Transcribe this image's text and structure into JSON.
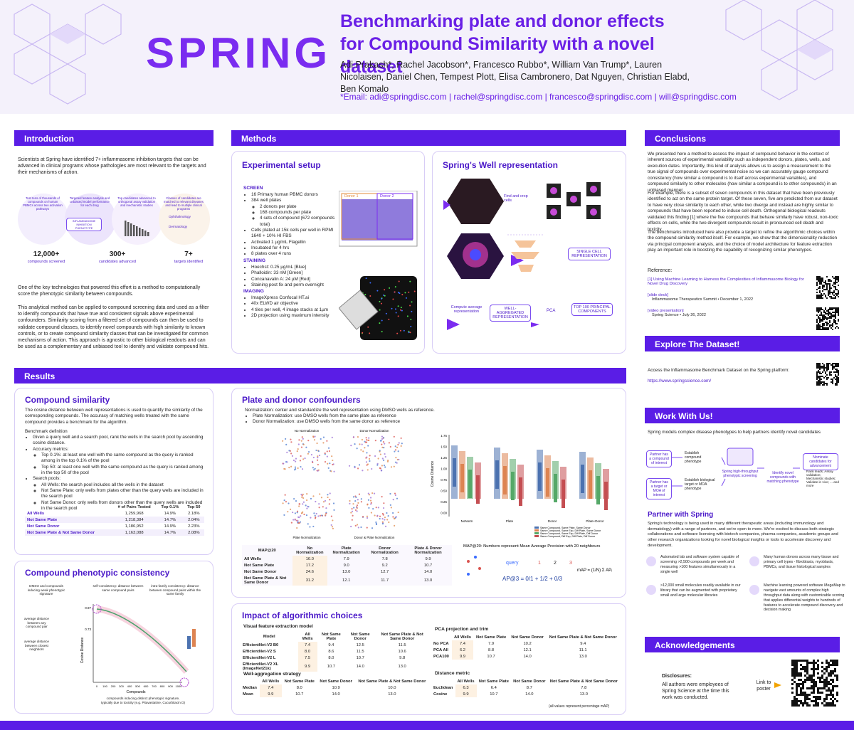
{
  "header": {
    "logo": "SPRING",
    "title": "Benchmarking plate and donor effects for Compound Similarity with a novel dataset",
    "authors": "Adi Prakash*, Rachel Jacobson*, Francesco Rubbo*, William Van Trump*, Lauren Nicolaisen, Daniel Chen, Tempest Plott, Elisa Cambronero, Dat Nguyen, Christian Elabd, Ben Komalo",
    "email": "*Email: adi@springdisc.com | rachel@springdisc.com | francesco@springdisc.com | will@springdisc.com"
  },
  "introduction": {
    "heading": "Introduction",
    "p1": "Scientists at Spring have identified 7+ inflammasome inhibition targets that can be advanced in clinical programs whose pathologies are most relevant to the targets and their mechanisms of action.",
    "steps": [
      "Test tens of thousands of compounds on human PBMCs across two activation pathways",
      "Targeted feature analysis and unbiased model performance for each drug",
      "Top candidates advanced to orthogonal assay validation and mechanistic studies",
      "Classes of candidates are matched to relevant diseases and lead to multiple clinical programs"
    ],
    "phenotype": "INFLAMMASOME INHIBITION PHENOTYPE",
    "diseases": [
      "Ophthalmology",
      "Dermatology"
    ],
    "stats": [
      {
        "value": "12,000+",
        "label": "compounds screened"
      },
      {
        "value": "300+",
        "label": "candidates advanced"
      },
      {
        "value": "7+",
        "label": "targets identified"
      }
    ],
    "p2": "One of the key technologies that powered this effort is a method to computationally score the phenotypic similarity between compounds.",
    "p3": "This analytical method can be applied to compound screening data and used as a filter to identify compounds that have true and consistent signals above experimental confounders. Similarity scoring from a filtered set of compounds can then be used to validate compound classes, to identify novel compounds with high similarity to known controls, or to create compound similarity classes that can be investigated for common mechanisms of action. This approach is agnostic to other biological readouts and can be used as a complementary and unbiased tool to identify and validate compound hits."
  },
  "methods": {
    "heading": "Methods",
    "setup": {
      "title": "Experimental setup",
      "screen_heading": "SCREEN",
      "screen": [
        "16 Primary human PBMC donors",
        {
          "text": "384 well plates",
          "items": [
            "2 donors per plate",
            "168 compounds per plate",
            "4 sets of compound (672 compounds total)"
          ]
        },
        "Cells plated at 15k cells per well in RPMI 1640 + 10% HI FBS",
        "Activated 1 µg/mL Flagellin",
        "Incubated for 4 hrs",
        "8 plates over 4 runs"
      ],
      "staining_heading": "STAINING",
      "staining": [
        "Hoechst: 0.25 µg/mL [Blue]",
        "Phalloidin: 33 nM [Green]",
        "Concanavalin A: 24 µM [Red]",
        "Staining post fix and perm overnight"
      ],
      "imaging_heading": "IMAGING",
      "imaging": [
        "ImageXpress Confocal HT.ai",
        "40x ELWD air objective",
        "4 tiles per well, 4 image stacks at 1µm",
        "2D projection using maximum intensity"
      ],
      "donors": [
        "Donor 1",
        "Donor 2"
      ]
    },
    "well": {
      "title": "Spring's Well representation",
      "crop": "Find and crop cells",
      "single": "SINGLE CELL REPRESENTATION",
      "average": "Compute average representation",
      "aggregated": "WELL-AGGREGATED REPRESENTATION",
      "pca": "PCA",
      "top": "TOP 100 PRINCIPAL COMPONENTS"
    }
  },
  "results": {
    "heading": "Results",
    "similarity": {
      "title": "Compound similarity",
      "intro": "The cosine distance between well representations is used to quantify the similarity of the corresponding compounds. The accuracy of matching wells treated with the same compound provides a benchmark for the algorithm.",
      "benchmark_title": "Benchmark definition",
      "benchmark": [
        "Given a query well and a search pool, rank the wells in the search pool by ascending cosine distance.",
        {
          "text": "Accuracy metrics:",
          "items": [
            "Top 0.1%: at least one well with the same compound as the query is ranked among in the top 0.1% of the pool",
            "Top 50: at least one well with the same compound as the query is ranked among in the top 50 of the pool"
          ]
        },
        {
          "text": "Search pools:",
          "items": [
            "All Wells: the search pool includes all the wells in the dataset",
            "Not Same Plate: only wells from plates other than the query wells are included in the search pool",
            "Not Same Donor: only wells from donors other than the query wells are included in the search pool"
          ]
        }
      ],
      "table": {
        "header": [
          "# of Pairs Tested",
          "Top 0.1%",
          "Top 50"
        ],
        "rows": [
          [
            "All Wells",
            "1,259,968",
            "14.9%",
            "2.18%"
          ],
          [
            "Not Same Plate",
            "1,218,384",
            "14.7%",
            "2.04%"
          ],
          [
            "Not Same Donor",
            "1,186,952",
            "14.9%",
            "2.23%"
          ],
          [
            "Not Same Plate & Not Same Donor",
            "1,163,088",
            "14.7%",
            "2.08%"
          ]
        ]
      }
    },
    "consistency": {
      "title": "Compound phenotypic consistency",
      "notes": [
        "DMSO and compounds inducing weak phenotypic signature",
        "self-consistency: distance between same compound pairs",
        "intra-family consistency: distance between compound pairs within the same family",
        "average distance between any compound pair",
        "average distance between closest neighbors",
        "compounds inducing distinct phenotypic signature, typically due to toxicity (e.g. Pitavastatine, Cucurbitacin D)"
      ],
      "ylabel": "Cosine Distance",
      "xlabel": "Compounds",
      "yticks": [
        "0.97",
        "0.73"
      ],
      "xticks": [
        "0",
        "100",
        "200",
        "300",
        "400",
        "500",
        "600",
        "700",
        "800",
        "900",
        "1000"
      ]
    },
    "plate": {
      "title": "Plate and donor confounders",
      "norm": "Normalization: center and standardize the well representation using DMSO wells as reference.",
      "bullets": [
        "Plate Normalization: use DMSO wells from the same plate as reference",
        "Donor Normalization: use DMSO wells from the same donor as reference"
      ],
      "panels": [
        "No Normalization",
        "Donor Normalization",
        "Plate Normalization",
        "Donor & Plate Normalization"
      ],
      "violin": {
        "ylabel": "Cosine Distance",
        "yticks": [
          "1.75",
          "1.50",
          "1.25",
          "1.00",
          "0.75",
          "0.50",
          "0.25",
          "0.00"
        ],
        "categories": [
          "NoNorm",
          "Plate",
          "Donor",
          "Plate+Donor"
        ],
        "legend": [
          "Same Compound, Same Plate, Same Donor",
          "Same Compound, Same Exp, Diff Plate, Same Donor",
          "Same Compound, Same Exp, Diff Plate, Diff Donor",
          "Same Compound, Diff Exp, Diff Plate, Diff Donor"
        ]
      },
      "map_table": {
        "header": [
          "MAP@20",
          "No Normalization",
          "Plate Normalization",
          "Donor Normalization",
          "Plate & Donor Normalization"
        ],
        "rows": [
          [
            "All Wells",
            "16.0",
            "7.9",
            "7.8",
            "9.9"
          ],
          [
            "Not Same Plate",
            "17.2",
            "9.0",
            "9.2",
            "10.7"
          ],
          [
            "Not Same Donor",
            "24.6",
            "13.0",
            "12.7",
            "14.0"
          ],
          [
            "Not Same Plate & Not Same Donor",
            "31.2",
            "12.1",
            "11.7",
            "13.0"
          ]
        ]
      },
      "map_note": "MAP@20: Numbers represent Mean Average Precision with 20 neighbours",
      "query": "query",
      "ranks": [
        "1",
        "2",
        "3"
      ],
      "ap": "AP@3 = 0/1 + 1/2 + 0/3",
      "map": "mAP = (1/N) Σ APᵢ"
    },
    "impact": {
      "title": "Impact of algorithmic choices",
      "model_title": "Visual feature extraction model",
      "model": {
        "header": [
          "Model",
          "All Wells",
          "Not Same Plate",
          "Not Same Donor",
          "Not Same Plate & Not Same Donor"
        ],
        "rows": [
          [
            "EfficientNet-V2 B0",
            "7.4",
            "9.4",
            "12.5",
            "11.5"
          ],
          [
            "EfficientNet-V2 S",
            "8.0",
            "8.6",
            "11.5",
            "10.6"
          ],
          [
            "EfficientNet-V2 L",
            "7.5",
            "8.0",
            "10.7",
            "9.8"
          ],
          [
            "EfficientNet-V2 XL (ImageNet21k)",
            "9.9",
            "10.7",
            "14.0",
            "13.0"
          ]
        ]
      },
      "agg_title": "Well-aggregation strategy",
      "agg": {
        "header": [
          "All Wells",
          "Not Same Plate",
          "Not Same Donor",
          "Not Same Plate & Not Same Donor"
        ],
        "rows": [
          [
            "Median",
            "7.4",
            "8.0",
            "10.9",
            "10.0"
          ],
          [
            "Mean",
            "9.9",
            "10.7",
            "14.0",
            "13.0"
          ]
        ]
      },
      "pca_title": "PCA projection and trim",
      "pca": {
        "header": [
          "All Wells",
          "Not Same Plate",
          "Not Same Donor",
          "Not Same Plate & Not Same Donor"
        ],
        "rows": [
          [
            "No PCA",
            "7.4",
            "7.9",
            "10.2",
            "9.4"
          ],
          [
            "PCA All",
            "6.2",
            "8.8",
            "12.1",
            "11.1"
          ],
          [
            "PCA100",
            "9.9",
            "10.7",
            "14.0",
            "13.0"
          ]
        ]
      },
      "dist_title": "Distance metric",
      "dist": {
        "header": [
          "All Wells",
          "Not Same Plate",
          "Not Same Donor",
          "Not Same Plate & Not Same Donor"
        ],
        "rows": [
          [
            "Euclidean",
            "6.3",
            "6.4",
            "8.7",
            "7.8"
          ],
          [
            "Cosine",
            "9.9",
            "10.7",
            "14.0",
            "13.0"
          ]
        ]
      },
      "footnote": "(all values represent percentage mAP)"
    }
  },
  "conclusions": {
    "heading": "Conclusions",
    "p1": "We presented here a method to assess the impact of compound behavior in the context of inherent sources of experimental variability such as independent donors, plates, wells, and execution dates. Importantly, this kind of analysis allows us to assign a measurement to the true signal of compounds over experimental noise so we can accurately gauge compound consistency (how similar a compound is to itself across experimental variables), and compound similarity to other molecules (how similar a compound is to other compounds) in an unbiased manner.",
    "p2": "For example, there is a subset of seven compounds in this dataset that have been previously identified to act on the same protein target. Of these seven, five are predicted from our dataset to have very close similarity to each other, while two diverge and instead are highly similar to compounds that have been reported to induce cell death. Orthogonal biological readouts validated this finding [1] where the five compounds that behave similarly have robust, non-toxic effects on cells, while the two divergent compounds result in pronounced cell death and toxicity.",
    "p3": "The benchmarks introduced here also provide a target to refine the algorithmic choices within the compound similarity method itself. For example, we show that the dimensionality reduction via principal component analysis, and the choice of model architecture for feature extraction play an important role in boosting the capability of recognizing similar phenotypes.",
    "reference": "Reference:",
    "refs": [
      {
        "title": "[1] Using Machine Learning to Harness the Complexities of Inflammasome Biology for Novel Drug Discovery"
      },
      {
        "title": "[slide deck]",
        "detail": "Inflammasome Therapeutics Summit • December 1, 2022"
      },
      {
        "title": "[video presentation]",
        "detail": "Spring Science • July 26, 2022"
      }
    ]
  },
  "explore": {
    "heading": "Explore The Dataset!",
    "text": "Access the Inflammasome Benchmark Dataset on the Spring platform:",
    "link": "https://www.springscience.com/"
  },
  "work": {
    "heading": "Work With Us!",
    "text": "Spring models complex disease phenotypes to help partners identify novel candidates",
    "compound": "Partner has a compound of interest",
    "target": "Partner has a target or MOA of interest",
    "est_compound": "Establish compound phenotype",
    "est_target": "Establish biological target or MOA phenotype",
    "screening": "Spring high-throughput phenotypic screening",
    "identify": "Identify novel compounds with matching phenotype",
    "nominate": "Nominate candidates for advancement",
    "next": "Rank leads; Assay validation; Mechanistic studies; Validate in vivo; ... and more"
  },
  "partner": {
    "heading": "Partner with Spring",
    "text": "Spring's technology is being used in many different therapeutic areas (including immunology and dermatology) with a range of partners, and we're open to more. We're excited to discuss both strategic collaborations and software licensing with biotech companies, pharma companies, academic groups and other research organizations looking for novel biological insights or tools to accelerate discovery and development.",
    "features": [
      "Automated lab and software system capable of screening >2,500 compounds per week and measuring >100 features simultaneously in a single well",
      "Many human donors across many tissue and primary cell types - fibroblasts, myoblasts, PBMCs, and tissue histological samples",
      ">12,000 small molecules readily available in our library that can be augmented with proprietary small and large molecular libraries",
      "Machine learning powered software MegaMap to navigate vast amounts of complex high throughput data along with customizable scoring that applies differential weights to hundreds of features to accelerate compound discovery and decision making"
    ]
  },
  "ack": {
    "heading": "Acknowledgements",
    "disclosures": "Disclosures:",
    "text": "All authors were employees of Spring Science at the time this work was conducted.",
    "link": "Link to poster"
  }
}
